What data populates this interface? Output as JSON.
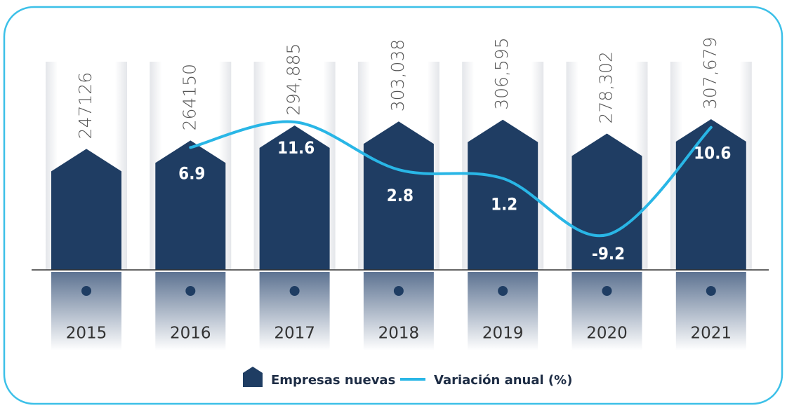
{
  "chart_data": {
    "type": "bar",
    "categories": [
      "2015",
      "2016",
      "2017",
      "2018",
      "2019",
      "2020",
      "2021"
    ],
    "series": [
      {
        "name": "Empresas nuevas",
        "color": "#1f3d63",
        "values": [
          247126,
          264150,
          294885,
          303038,
          306595,
          278302,
          307679
        ],
        "value_labels": [
          "247126",
          "264150",
          "294,885",
          "303,038",
          "306,595",
          "278,302",
          "307,679"
        ]
      },
      {
        "name": "Variación anual (%)",
        "color": "#29b6e6",
        "type": "line",
        "values": [
          null,
          6.9,
          11.6,
          2.8,
          1.2,
          -9.2,
          10.6
        ]
      }
    ]
  }
}
